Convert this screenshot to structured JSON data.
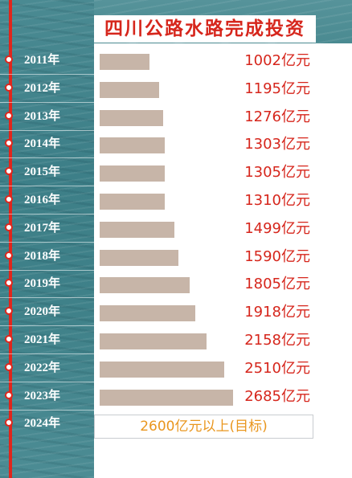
{
  "chart_data": {
    "type": "bar",
    "title": "四川公路水路完成投资",
    "unit": "亿元",
    "categories": [
      "2011年",
      "2012年",
      "2013年",
      "2014年",
      "2015年",
      "2016年",
      "2017年",
      "2018年",
      "2019年",
      "2020年",
      "2021年",
      "2022年",
      "2023年",
      "2024年"
    ],
    "values": [
      1002,
      1195,
      1276,
      1303,
      1305,
      1310,
      1499,
      1590,
      1805,
      1918,
      2158,
      2510,
      2685,
      null
    ],
    "labels": [
      "1002亿元",
      "1195亿元",
      "1276亿元",
      "1303亿元",
      "1305亿元",
      "1310亿元",
      "1499亿元",
      "1590亿元",
      "1805亿元",
      "1918亿元",
      "2158亿元",
      "2510亿元",
      "2685亿元"
    ],
    "target": {
      "year": "2024年",
      "label": "2600亿元以上(目标)"
    },
    "colors": {
      "bar": "#c7b5a8",
      "value_text": "#d6261c",
      "target_text": "#e9961e",
      "timeline": "#e0261c",
      "background": "#3f8189"
    }
  }
}
